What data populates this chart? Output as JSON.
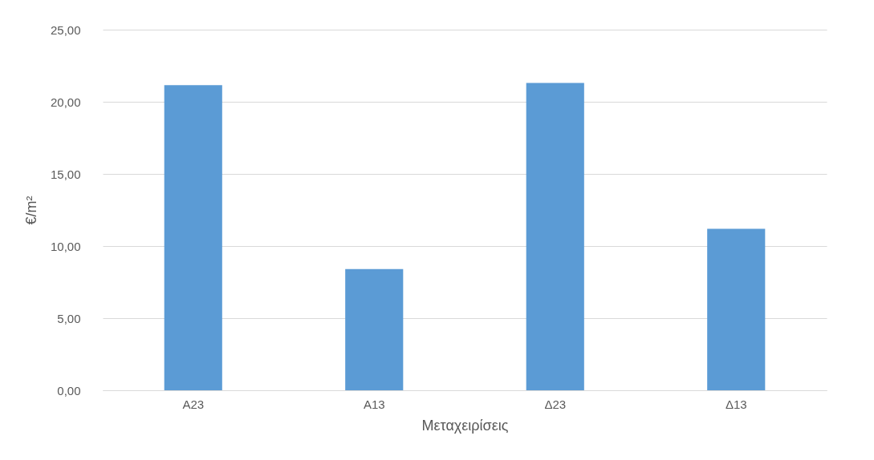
{
  "chart_data": {
    "type": "bar",
    "xlabel": "Μεταχειρίσεις",
    "ylabel": "€/m²",
    "categories": [
      "Α23",
      "Α13",
      "Δ23",
      "Δ13"
    ],
    "values": [
      21.15,
      8.4,
      21.3,
      11.2
    ],
    "color": "#5b9bd5",
    "ylim": [
      0,
      25
    ],
    "yticks": [
      {
        "value": 0,
        "label": "0,00"
      },
      {
        "value": 5,
        "label": "5,00"
      },
      {
        "value": 10,
        "label": "10,00"
      },
      {
        "value": 15,
        "label": "15,00"
      },
      {
        "value": 20,
        "label": "20,00"
      },
      {
        "value": 25,
        "label": "25,00"
      }
    ],
    "grid": "y"
  }
}
